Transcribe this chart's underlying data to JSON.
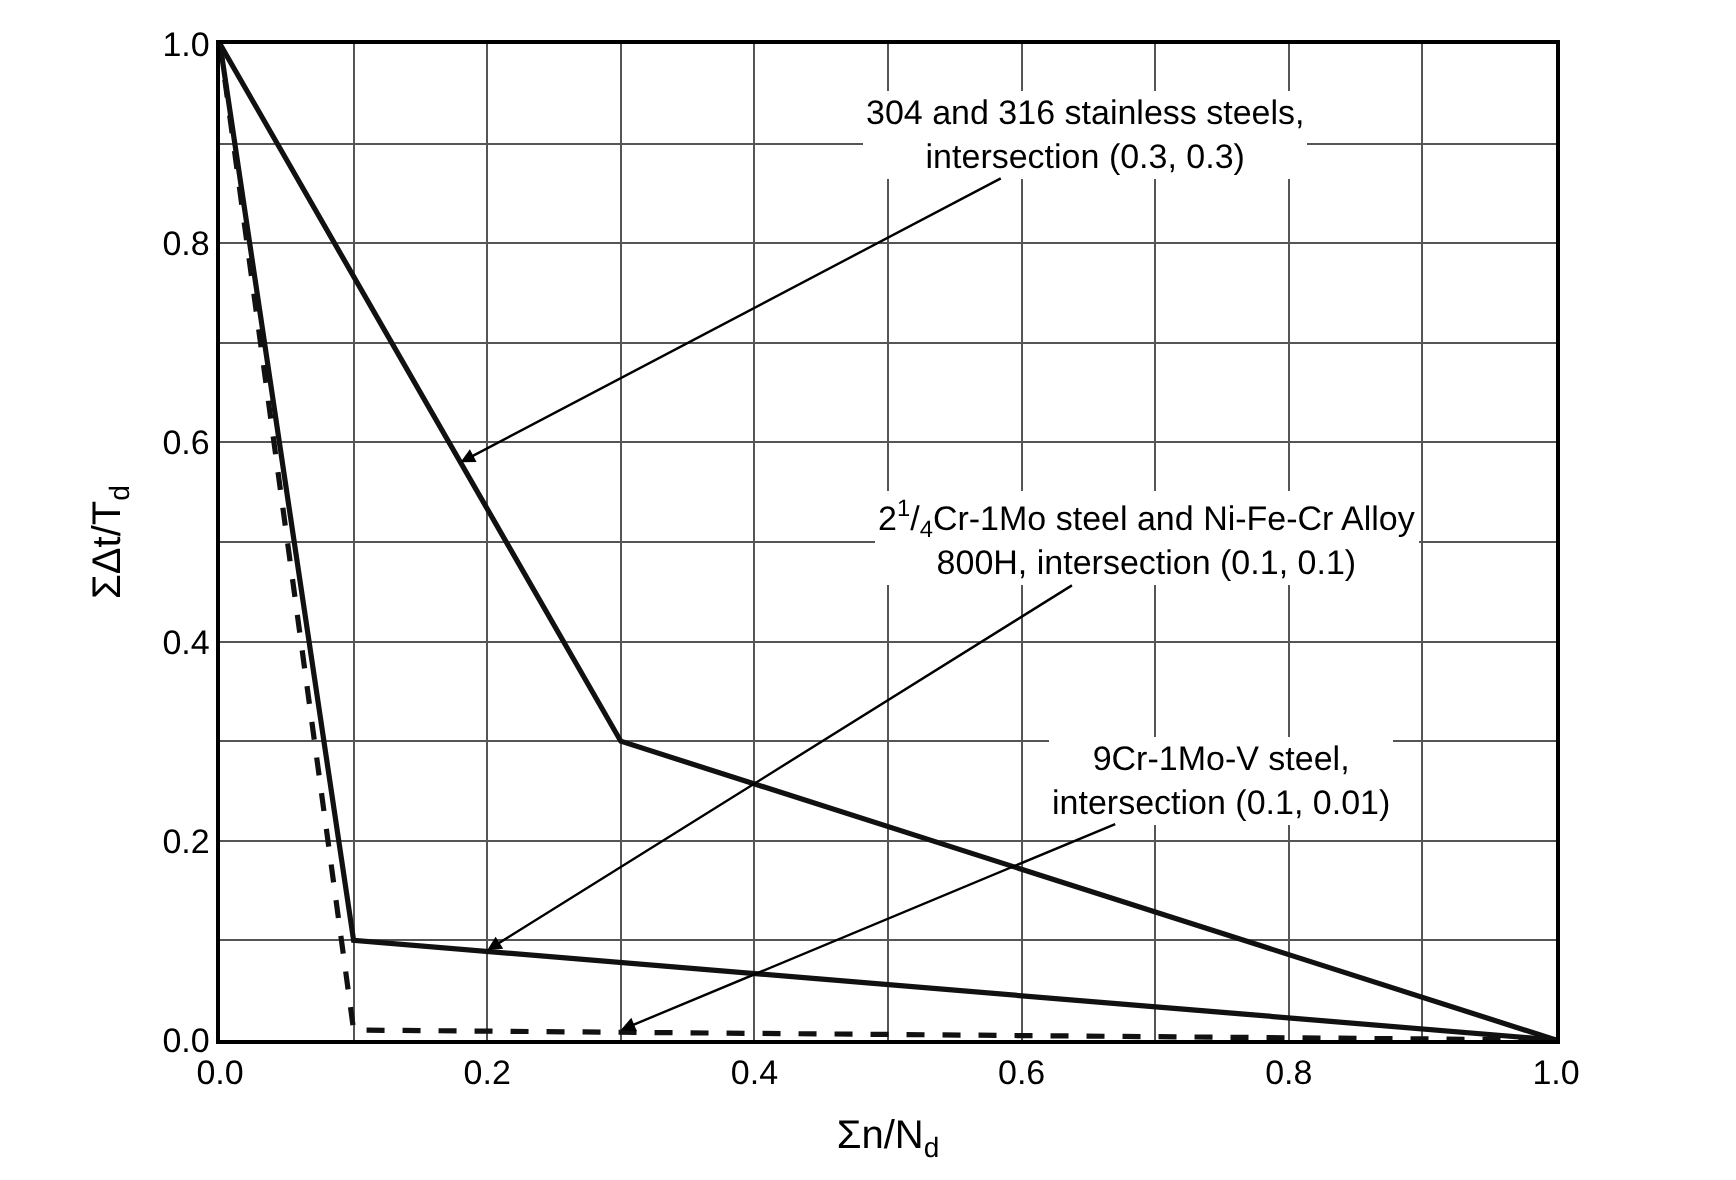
{
  "chart_data": {
    "type": "line",
    "xlabel": "Σn/N$_{d}$",
    "ylabel": "ΣΔt/T$_{d}$",
    "series": [
      {
        "color": "#111111",
        "x": [
          0,
          0.3,
          1
        ],
        "values": [
          1,
          0.3,
          0
        ],
        "line_style": "solid"
      },
      {
        "color": "#111111",
        "x": [
          0,
          0.1,
          1
        ],
        "values": [
          1,
          0.1,
          0
        ],
        "line_style": "solid"
      },
      {
        "color": "#111111",
        "x": [
          0,
          0.1,
          1
        ],
        "values": [
          1,
          0.01,
          0
        ],
        "line_style": "dashed"
      }
    ],
    "xlim": [
      0,
      1
    ],
    "ylim": [
      0,
      1
    ],
    "xticks": [
      {
        "value": 0,
        "label": "0.0"
      },
      {
        "value": 0.1,
        "label": null
      },
      {
        "value": 0.2,
        "label": "0.2"
      },
      {
        "value": 0.3,
        "label": null
      },
      {
        "value": 0.4,
        "label": "0.4"
      },
      {
        "value": 0.5,
        "label": null
      },
      {
        "value": 0.6,
        "label": "0.6"
      },
      {
        "value": 0.7,
        "label": null
      },
      {
        "value": 0.8,
        "label": "0.8"
      },
      {
        "value": 0.9,
        "label": null
      },
      {
        "value": 1.0,
        "label": "1.0"
      }
    ],
    "yticks": [
      {
        "value": 0,
        "label": "0.0"
      },
      {
        "value": 0.1,
        "label": null
      },
      {
        "value": 0.2,
        "label": "0.2"
      },
      {
        "value": 0.3,
        "label": null
      },
      {
        "value": 0.4,
        "label": "0.4"
      },
      {
        "value": 0.5,
        "label": null
      },
      {
        "value": 0.6,
        "label": "0.6"
      },
      {
        "value": 0.7,
        "label": null
      },
      {
        "value": 0.8,
        "label": "0.8"
      },
      {
        "value": 0.9,
        "label": null
      },
      {
        "value": 1.0,
        "label": "1.0"
      }
    ],
    "grid": true,
    "annotations": [
      {
        "text": "304 and 316 stainless steels,\nintersection (0.3, 0.3)",
        "x": 0.18,
        "y": 0.58
      },
      {
        "text": "2$^{1}$/$_{4}$Cr-1Mo steel and Ni-Fe-Cr Alloy\n800H, intersection (0.1, 0.1)",
        "x": 0.2,
        "y": 0.09
      },
      {
        "text": "9Cr-1Mo-V steel,\nintersection (0.1, 0.01)",
        "x": 0.3,
        "y": 0.01
      }
    ]
  }
}
